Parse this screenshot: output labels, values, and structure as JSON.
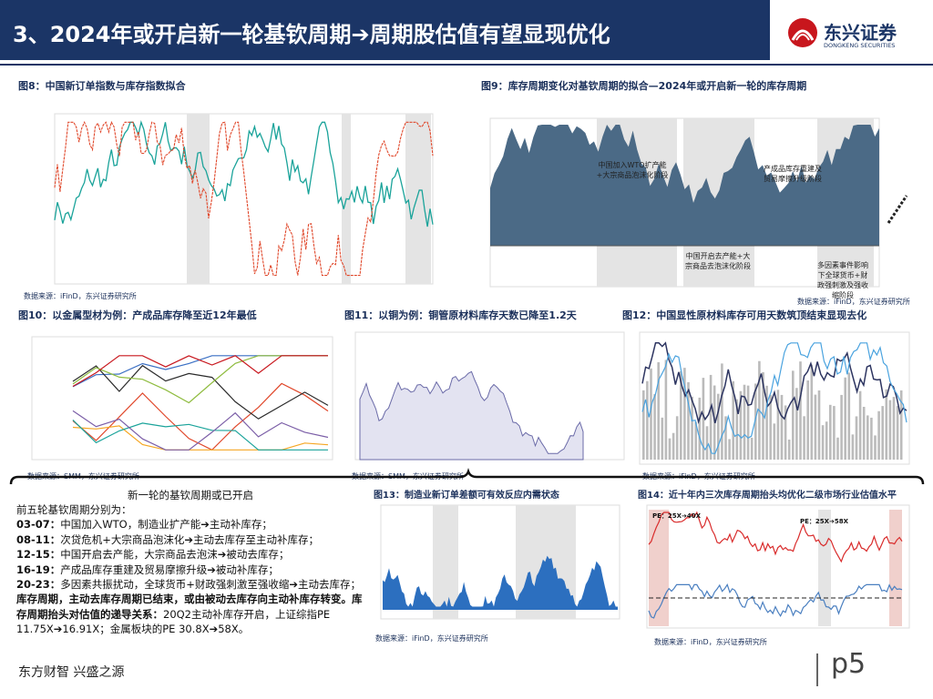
{
  "header": {
    "title": "3、2024年或开启新一轮基钦周期➔周期股估值有望显现优化",
    "logo_cn": "东兴证券",
    "logo_en": "DONGKENG SECURITIES"
  },
  "figures": [
    {
      "caption": "图8：中国新订单指数与库存指数拟合",
      "source": "数据来源：iFinD，东兴证券研究所"
    },
    {
      "caption": "图9：库存周期变化对基钦周期的拟合—2024年或开启新一轮的库存周期",
      "source": "数据来源：iFinD，东兴证券研究所",
      "annotations": [
        "中国加入WTO扩产能+大宗商品泡沫化阶段",
        "中国开启去产能+大宗商品去泡沫化阶段",
        "产成品库存重建及贸易摩擦升级阶段",
        "多因素事件影响下全球货币+财政强刺激及强收缩阶段"
      ]
    },
    {
      "caption": "图10：以金属型材为例：产成品库存降至近12年最低",
      "source": "数据来源：SMM，东兴证券研究所"
    },
    {
      "caption": "图11：以铜为例：铜管原材料库存天数已降至1.2天",
      "source": "数据来源：SMM，东兴证券研究所"
    },
    {
      "caption": "图12：中国显性原材料库存可用天数筑顶结束显现去化",
      "source": "数据来源：iFinD，东兴证券研究所"
    },
    {
      "caption": "图13：制造业新订单差额可有效反应内需状态",
      "source": "数据来源：iFinD，东兴证券研究所"
    },
    {
      "caption": "图14：近十年内三次库存周期抬头均优化二级市场行业估值水平",
      "source": "数据来源：iFinD，东兴证券研究所",
      "annotations": [
        "PE：25X➔40X",
        "PE：25X➔58X"
      ]
    }
  ],
  "summary": {
    "heading": "新一轮的基钦周期或已开启",
    "intro": "前五轮基钦周期分别为：",
    "items": [
      {
        "period": "03-07：",
        "text": "中国加入WTO，制造业扩产能➔主动补库存；"
      },
      {
        "period": "08-11：",
        "text": "次贷危机+大宗商品泡沫化➔主动去库存至主动补库存；"
      },
      {
        "period": "12-15：",
        "text": "中国开启去产能，大宗商品去泡沫➔被动去库存；"
      },
      {
        "period": "16-19：",
        "text": "产成品库存重建及贸易摩擦升级➔被动补库存；"
      },
      {
        "period": "20-23：",
        "text": "多因素共振扰动，全球货币+财政强刺激至强收缩➔主动去库存；"
      }
    ],
    "conclusion_bold": "库存周期，主动去库存周期已结束，或由被动去库存向主动补库存转变。库存周期抬头对估值的递导关系：",
    "conclusion": "20Q2主动补库存开启，上证综指PE 11.75X➔16.91X；金属板块的PE 30.8X➔58X。"
  },
  "footer": {
    "slogan": "东方财智 兴盛之源",
    "page": "p5"
  }
}
